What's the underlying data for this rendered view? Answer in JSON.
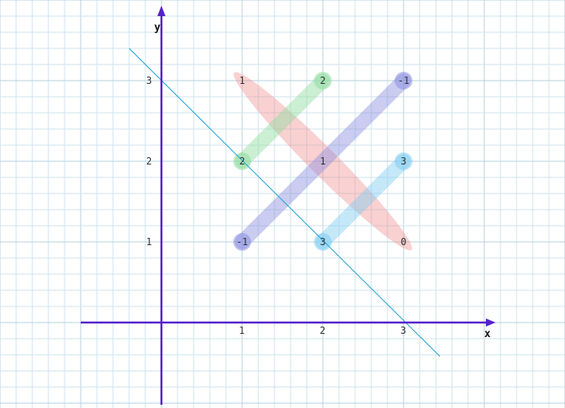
{
  "axes": {
    "x_label": "x",
    "y_label": "y",
    "x_ticks": [
      1,
      2,
      3
    ],
    "y_ticks": [
      1,
      2,
      3
    ],
    "x_tick_labels": [
      "1",
      "2",
      "3"
    ],
    "y_tick_labels": [
      "1",
      "2",
      "3"
    ],
    "axis_color": "#5522cc"
  },
  "grid": {
    "minor_color": "#cfe3ec",
    "major_color": "#b7d1de"
  },
  "trend_line": {
    "p1": [
      -0.4,
      3.4
    ],
    "p2": [
      3.45,
      -0.42
    ],
    "color": "#1aa0d8"
  },
  "points": [
    {
      "x": 1,
      "y": 3,
      "label": "1"
    },
    {
      "x": 2,
      "y": 3,
      "label": "2"
    },
    {
      "x": 3,
      "y": 3,
      "label": "-1"
    },
    {
      "x": 1,
      "y": 2,
      "label": "2"
    },
    {
      "x": 2,
      "y": 2,
      "label": "1"
    },
    {
      "x": 3,
      "y": 2,
      "label": "3"
    },
    {
      "x": 1,
      "y": 1,
      "label": "-1"
    },
    {
      "x": 2,
      "y": 1,
      "label": "3"
    },
    {
      "x": 3,
      "y": 1,
      "label": "0"
    }
  ],
  "pairings": [
    {
      "from": [
        1,
        3
      ],
      "to": [
        3,
        1
      ],
      "color": "#f08b8b",
      "kind": "ellipse"
    },
    {
      "from": [
        1,
        2
      ],
      "to": [
        2,
        3
      ],
      "color": "#8fdda0",
      "kind": "bar"
    },
    {
      "from": [
        1,
        1
      ],
      "to": [
        3,
        3
      ],
      "color": "#8c8fe0",
      "kind": "bar"
    },
    {
      "from": [
        2,
        1
      ],
      "to": [
        3,
        2
      ],
      "color": "#80cdf2",
      "kind": "bar"
    }
  ]
}
